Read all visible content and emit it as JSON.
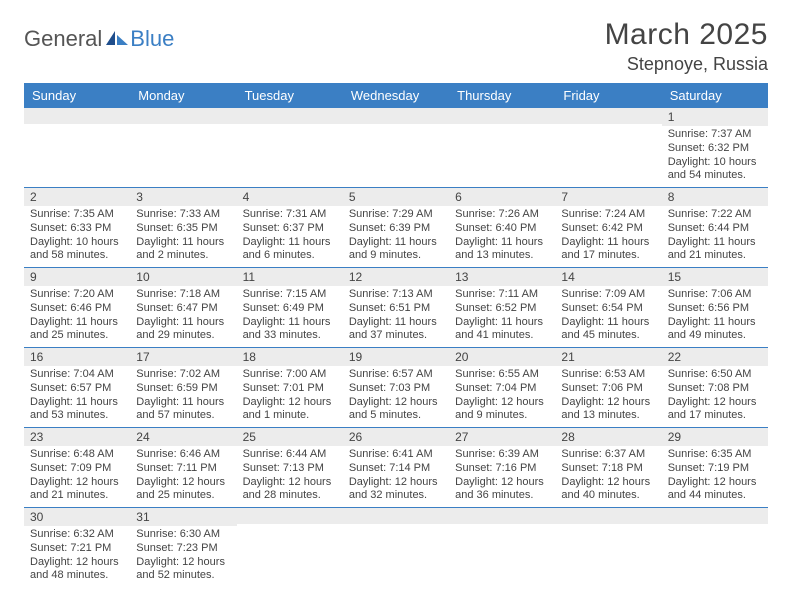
{
  "brand": {
    "part1": "General",
    "part2": "Blue"
  },
  "title": "March 2025",
  "location": "Stepnoye, Russia",
  "colors": {
    "header_bg": "#3b7fc4",
    "header_text": "#ffffff",
    "daynum_bg": "#ececec",
    "cell_border": "#3b7fc4",
    "text": "#444444"
  },
  "weekdays": [
    "Sunday",
    "Monday",
    "Tuesday",
    "Wednesday",
    "Thursday",
    "Friday",
    "Saturday"
  ],
  "weeks": [
    [
      {
        "n": "",
        "sunrise": "",
        "sunset": "",
        "daylight": ""
      },
      {
        "n": "",
        "sunrise": "",
        "sunset": "",
        "daylight": ""
      },
      {
        "n": "",
        "sunrise": "",
        "sunset": "",
        "daylight": ""
      },
      {
        "n": "",
        "sunrise": "",
        "sunset": "",
        "daylight": ""
      },
      {
        "n": "",
        "sunrise": "",
        "sunset": "",
        "daylight": ""
      },
      {
        "n": "",
        "sunrise": "",
        "sunset": "",
        "daylight": ""
      },
      {
        "n": "1",
        "sunrise": "Sunrise: 7:37 AM",
        "sunset": "Sunset: 6:32 PM",
        "daylight": "Daylight: 10 hours and 54 minutes."
      }
    ],
    [
      {
        "n": "2",
        "sunrise": "Sunrise: 7:35 AM",
        "sunset": "Sunset: 6:33 PM",
        "daylight": "Daylight: 10 hours and 58 minutes."
      },
      {
        "n": "3",
        "sunrise": "Sunrise: 7:33 AM",
        "sunset": "Sunset: 6:35 PM",
        "daylight": "Daylight: 11 hours and 2 minutes."
      },
      {
        "n": "4",
        "sunrise": "Sunrise: 7:31 AM",
        "sunset": "Sunset: 6:37 PM",
        "daylight": "Daylight: 11 hours and 6 minutes."
      },
      {
        "n": "5",
        "sunrise": "Sunrise: 7:29 AM",
        "sunset": "Sunset: 6:39 PM",
        "daylight": "Daylight: 11 hours and 9 minutes."
      },
      {
        "n": "6",
        "sunrise": "Sunrise: 7:26 AM",
        "sunset": "Sunset: 6:40 PM",
        "daylight": "Daylight: 11 hours and 13 minutes."
      },
      {
        "n": "7",
        "sunrise": "Sunrise: 7:24 AM",
        "sunset": "Sunset: 6:42 PM",
        "daylight": "Daylight: 11 hours and 17 minutes."
      },
      {
        "n": "8",
        "sunrise": "Sunrise: 7:22 AM",
        "sunset": "Sunset: 6:44 PM",
        "daylight": "Daylight: 11 hours and 21 minutes."
      }
    ],
    [
      {
        "n": "9",
        "sunrise": "Sunrise: 7:20 AM",
        "sunset": "Sunset: 6:46 PM",
        "daylight": "Daylight: 11 hours and 25 minutes."
      },
      {
        "n": "10",
        "sunrise": "Sunrise: 7:18 AM",
        "sunset": "Sunset: 6:47 PM",
        "daylight": "Daylight: 11 hours and 29 minutes."
      },
      {
        "n": "11",
        "sunrise": "Sunrise: 7:15 AM",
        "sunset": "Sunset: 6:49 PM",
        "daylight": "Daylight: 11 hours and 33 minutes."
      },
      {
        "n": "12",
        "sunrise": "Sunrise: 7:13 AM",
        "sunset": "Sunset: 6:51 PM",
        "daylight": "Daylight: 11 hours and 37 minutes."
      },
      {
        "n": "13",
        "sunrise": "Sunrise: 7:11 AM",
        "sunset": "Sunset: 6:52 PM",
        "daylight": "Daylight: 11 hours and 41 minutes."
      },
      {
        "n": "14",
        "sunrise": "Sunrise: 7:09 AM",
        "sunset": "Sunset: 6:54 PM",
        "daylight": "Daylight: 11 hours and 45 minutes."
      },
      {
        "n": "15",
        "sunrise": "Sunrise: 7:06 AM",
        "sunset": "Sunset: 6:56 PM",
        "daylight": "Daylight: 11 hours and 49 minutes."
      }
    ],
    [
      {
        "n": "16",
        "sunrise": "Sunrise: 7:04 AM",
        "sunset": "Sunset: 6:57 PM",
        "daylight": "Daylight: 11 hours and 53 minutes."
      },
      {
        "n": "17",
        "sunrise": "Sunrise: 7:02 AM",
        "sunset": "Sunset: 6:59 PM",
        "daylight": "Daylight: 11 hours and 57 minutes."
      },
      {
        "n": "18",
        "sunrise": "Sunrise: 7:00 AM",
        "sunset": "Sunset: 7:01 PM",
        "daylight": "Daylight: 12 hours and 1 minute."
      },
      {
        "n": "19",
        "sunrise": "Sunrise: 6:57 AM",
        "sunset": "Sunset: 7:03 PM",
        "daylight": "Daylight: 12 hours and 5 minutes."
      },
      {
        "n": "20",
        "sunrise": "Sunrise: 6:55 AM",
        "sunset": "Sunset: 7:04 PM",
        "daylight": "Daylight: 12 hours and 9 minutes."
      },
      {
        "n": "21",
        "sunrise": "Sunrise: 6:53 AM",
        "sunset": "Sunset: 7:06 PM",
        "daylight": "Daylight: 12 hours and 13 minutes."
      },
      {
        "n": "22",
        "sunrise": "Sunrise: 6:50 AM",
        "sunset": "Sunset: 7:08 PM",
        "daylight": "Daylight: 12 hours and 17 minutes."
      }
    ],
    [
      {
        "n": "23",
        "sunrise": "Sunrise: 6:48 AM",
        "sunset": "Sunset: 7:09 PM",
        "daylight": "Daylight: 12 hours and 21 minutes."
      },
      {
        "n": "24",
        "sunrise": "Sunrise: 6:46 AM",
        "sunset": "Sunset: 7:11 PM",
        "daylight": "Daylight: 12 hours and 25 minutes."
      },
      {
        "n": "25",
        "sunrise": "Sunrise: 6:44 AM",
        "sunset": "Sunset: 7:13 PM",
        "daylight": "Daylight: 12 hours and 28 minutes."
      },
      {
        "n": "26",
        "sunrise": "Sunrise: 6:41 AM",
        "sunset": "Sunset: 7:14 PM",
        "daylight": "Daylight: 12 hours and 32 minutes."
      },
      {
        "n": "27",
        "sunrise": "Sunrise: 6:39 AM",
        "sunset": "Sunset: 7:16 PM",
        "daylight": "Daylight: 12 hours and 36 minutes."
      },
      {
        "n": "28",
        "sunrise": "Sunrise: 6:37 AM",
        "sunset": "Sunset: 7:18 PM",
        "daylight": "Daylight: 12 hours and 40 minutes."
      },
      {
        "n": "29",
        "sunrise": "Sunrise: 6:35 AM",
        "sunset": "Sunset: 7:19 PM",
        "daylight": "Daylight: 12 hours and 44 minutes."
      }
    ],
    [
      {
        "n": "30",
        "sunrise": "Sunrise: 6:32 AM",
        "sunset": "Sunset: 7:21 PM",
        "daylight": "Daylight: 12 hours and 48 minutes."
      },
      {
        "n": "31",
        "sunrise": "Sunrise: 6:30 AM",
        "sunset": "Sunset: 7:23 PM",
        "daylight": "Daylight: 12 hours and 52 minutes."
      },
      {
        "n": "",
        "sunrise": "",
        "sunset": "",
        "daylight": ""
      },
      {
        "n": "",
        "sunrise": "",
        "sunset": "",
        "daylight": ""
      },
      {
        "n": "",
        "sunrise": "",
        "sunset": "",
        "daylight": ""
      },
      {
        "n": "",
        "sunrise": "",
        "sunset": "",
        "daylight": ""
      },
      {
        "n": "",
        "sunrise": "",
        "sunset": "",
        "daylight": ""
      }
    ]
  ]
}
